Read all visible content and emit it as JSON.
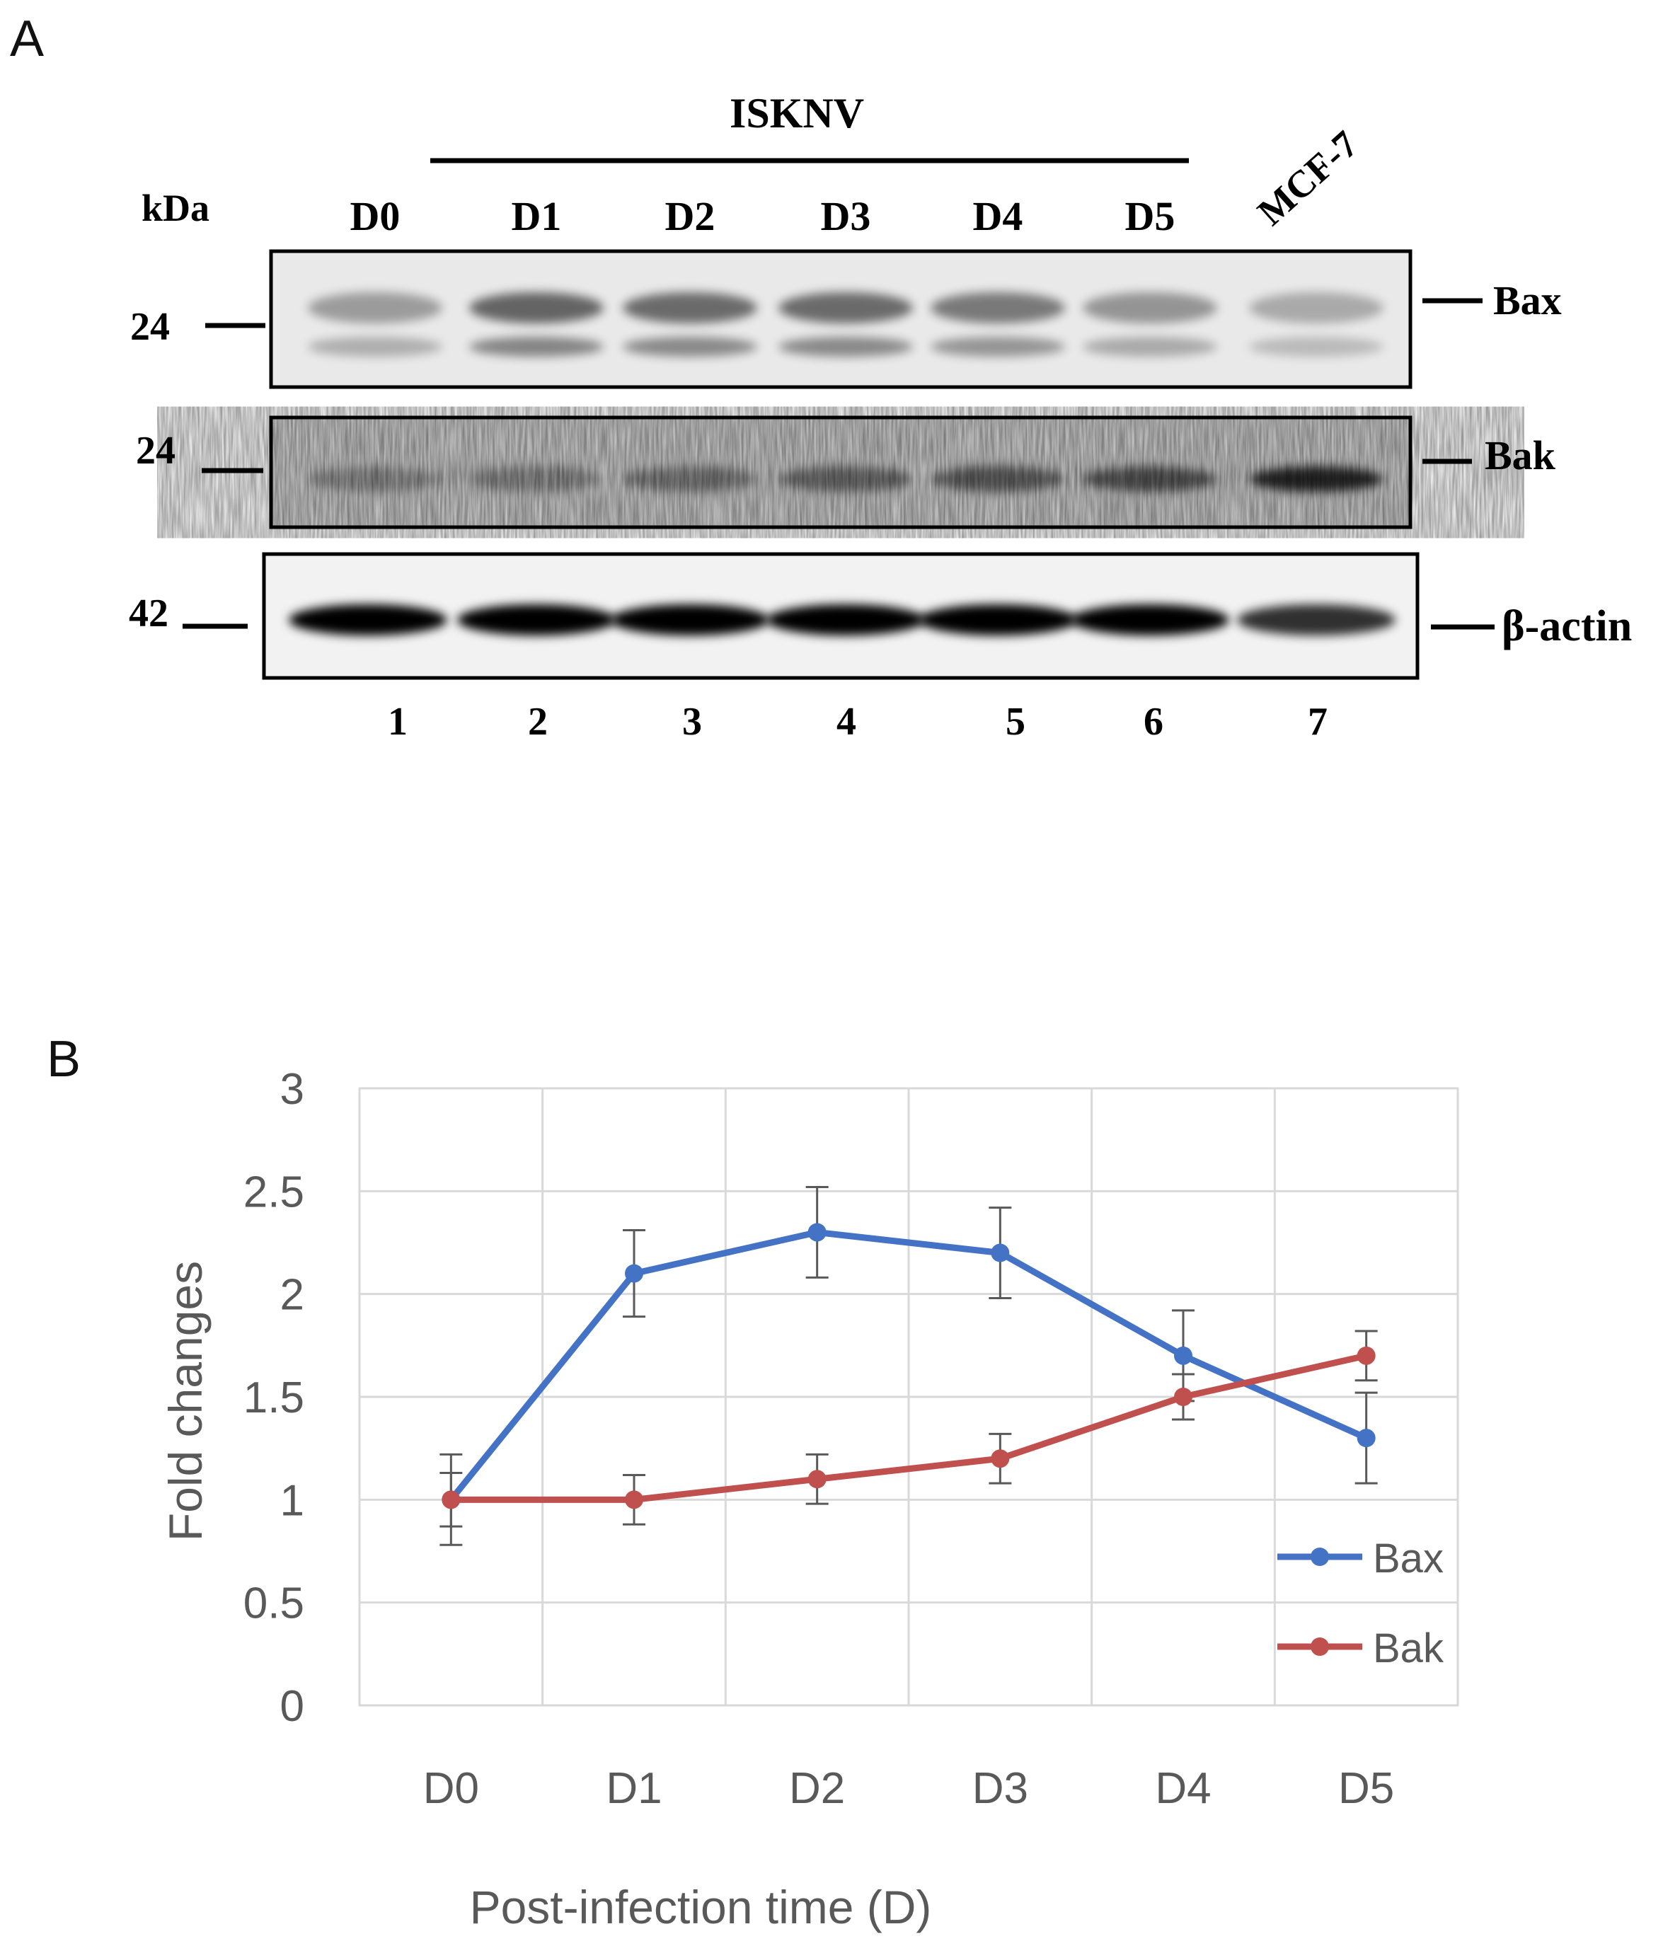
{
  "panel_a": {
    "label": "A",
    "kda_label": "kDa",
    "treatment_label": "ISKNV",
    "lane_headers": [
      "D0",
      "D1",
      "D2",
      "D3",
      "D4",
      "D5",
      "MCF-7"
    ],
    "lane_numbers": [
      "1",
      "2",
      "3",
      "4",
      "5",
      "6",
      "7"
    ],
    "blots": [
      {
        "name": "Bax",
        "marker_kda": "24",
        "band_intensity": [
          0.55,
          0.95,
          0.9,
          0.9,
          0.8,
          0.6,
          0.45
        ]
      },
      {
        "name": "Bak",
        "marker_kda": "24",
        "band_intensity": [
          0.35,
          0.35,
          0.45,
          0.55,
          0.6,
          0.7,
          1.0
        ]
      },
      {
        "name": "β-actin",
        "marker_kda": "42",
        "band_intensity": [
          1.0,
          1.0,
          1.0,
          1.0,
          1.0,
          0.95,
          0.75
        ]
      }
    ]
  },
  "panel_b": {
    "label": "B"
  },
  "chart_data": {
    "type": "line",
    "categories": [
      "D0",
      "D1",
      "D2",
      "D3",
      "D4",
      "D5"
    ],
    "series": [
      {
        "name": "Bax",
        "color": "#4472C4",
        "values": [
          1.0,
          2.1,
          2.3,
          2.2,
          1.7,
          1.3
        ],
        "errors": [
          0.22,
          0.21,
          0.22,
          0.22,
          0.22,
          0.22
        ]
      },
      {
        "name": "Bak",
        "color": "#C0504D",
        "values": [
          1.0,
          1.0,
          1.1,
          1.2,
          1.5,
          1.7
        ],
        "errors": [
          0.13,
          0.12,
          0.12,
          0.12,
          0.11,
          0.12
        ]
      }
    ],
    "xlabel": "Post-infection time (D)",
    "ylabel": "Fold changes",
    "ylim": [
      0,
      3
    ],
    "yticks": [
      "0",
      "0.5",
      "1",
      "1.5",
      "2",
      "2.5",
      "3"
    ],
    "grid": true,
    "legend": "bottom-right"
  }
}
